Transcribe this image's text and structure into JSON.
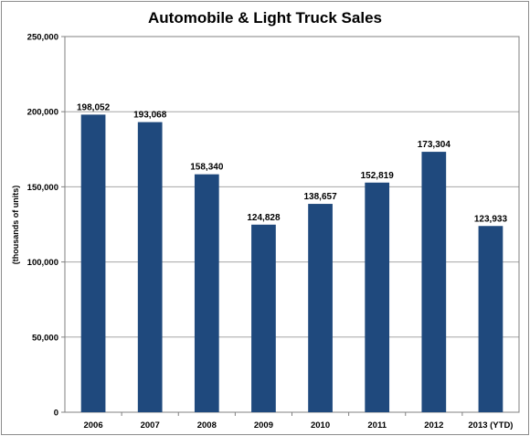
{
  "chart_data": {
    "type": "bar",
    "title": "Automobile & Light Truck Sales",
    "xlabel": "",
    "ylabel": "(thousands of units)",
    "categories": [
      "2006",
      "2007",
      "2008",
      "2009",
      "2010",
      "2011",
      "2012",
      "2013 (YTD)"
    ],
    "values": [
      198052,
      193068,
      158340,
      124828,
      138657,
      152819,
      173304,
      123933
    ],
    "value_labels": [
      "198,052",
      "193,068",
      "158,340",
      "124,828",
      "138,657",
      "152,819",
      "173,304",
      "123,933"
    ],
    "ylim": [
      0,
      250000
    ],
    "yticks": [
      0,
      50000,
      100000,
      150000,
      200000,
      250000
    ],
    "ytick_labels": [
      "0",
      "50,000",
      "100,000",
      "150,000",
      "200,000",
      "250,000"
    ],
    "grid": true,
    "legend": "none",
    "colors": {
      "bar": "#1f497d",
      "grid": "#a6a6a6",
      "axis": "#808080",
      "plot_border": "#808080"
    }
  }
}
